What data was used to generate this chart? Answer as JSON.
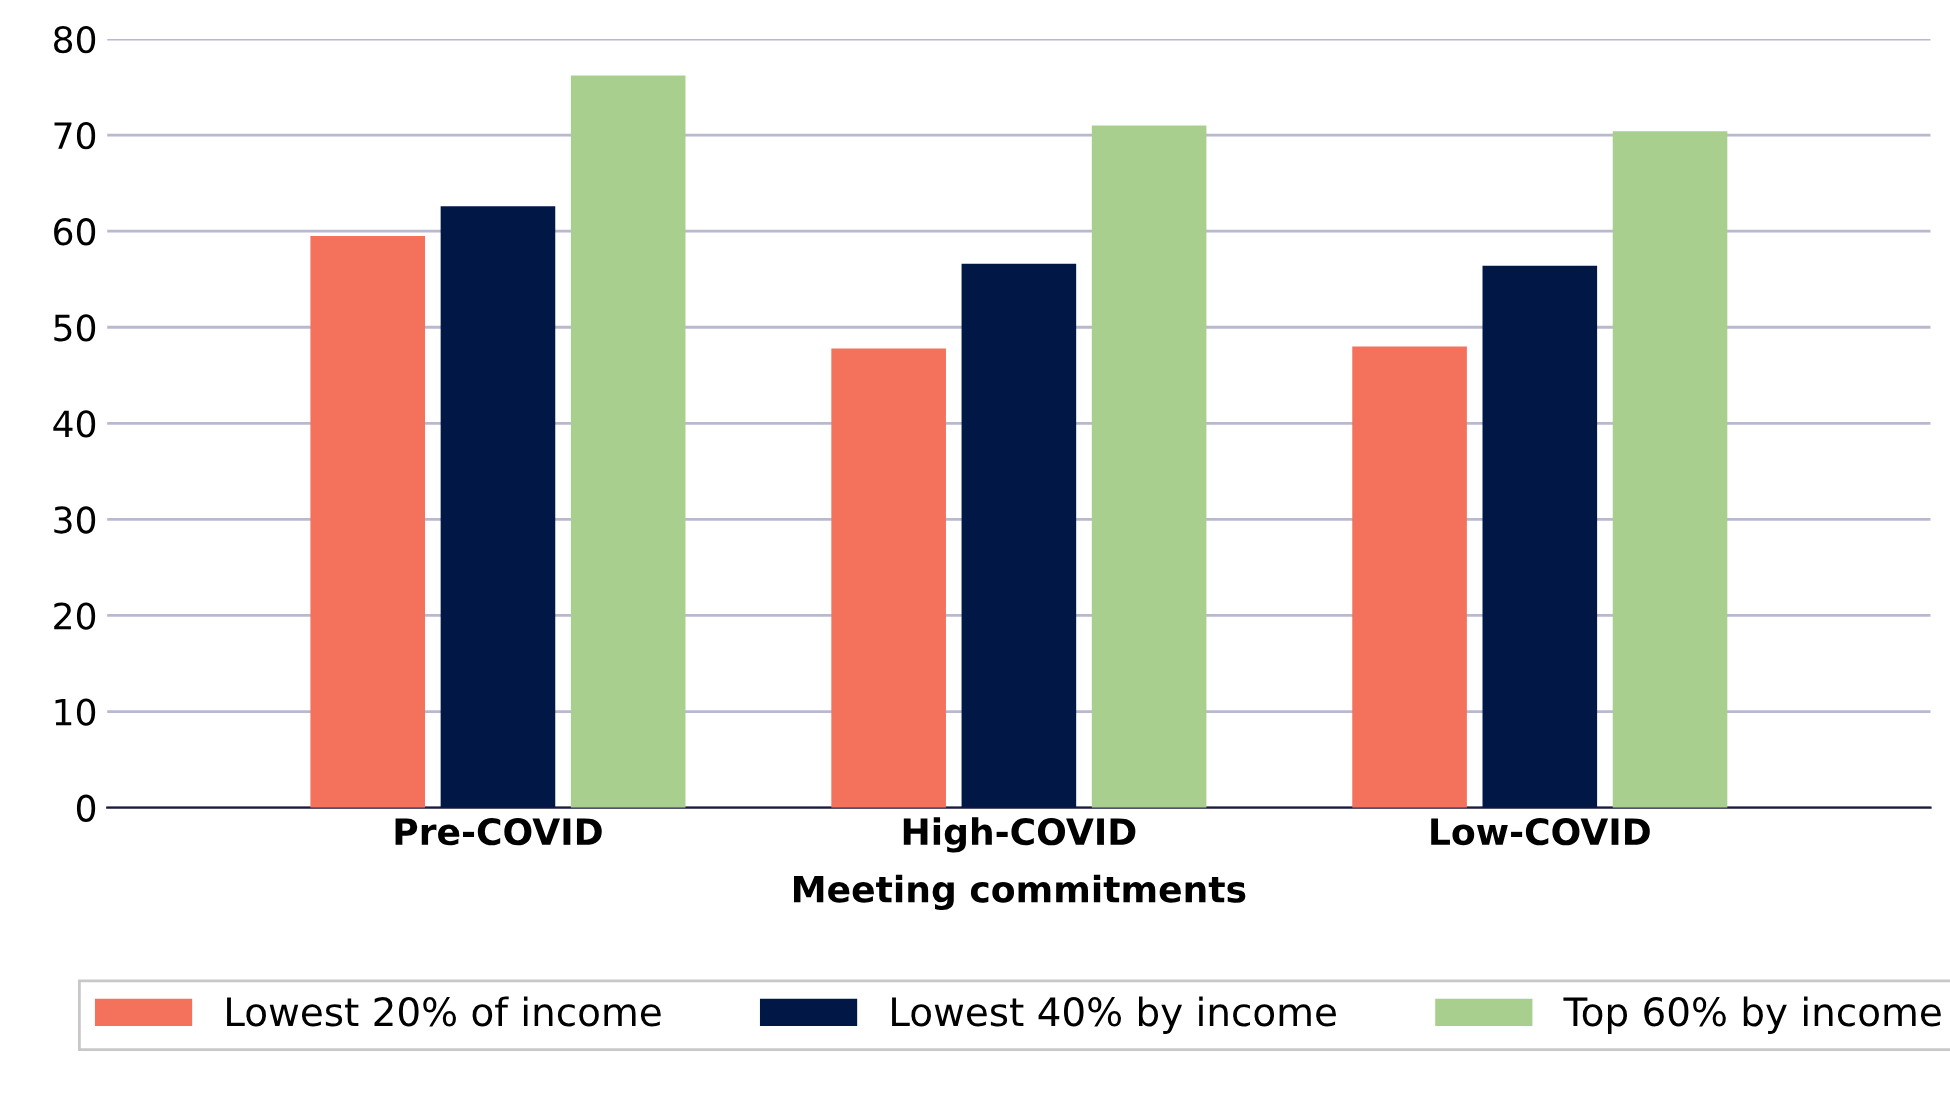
{
  "chart_data": {
    "type": "bar",
    "xlabel": "Meeting commitments",
    "categories": [
      "Pre-COVID",
      "High-COVID",
      "Low-COVID"
    ],
    "series": [
      {
        "name": "Lowest 20% of income",
        "color": "#f4715b",
        "values": [
          59.5,
          47.8,
          48.0
        ]
      },
      {
        "name": "Lowest 40% by income",
        "color": "#011847",
        "values": [
          62.6,
          56.6,
          56.4
        ]
      },
      {
        "name": "Top 60% by income",
        "color": "#a9cf8e",
        "values": [
          76.2,
          71.0,
          70.4
        ]
      }
    ],
    "ylim": [
      0,
      80
    ],
    "yticks": [
      0,
      10,
      20,
      30,
      40,
      50,
      60,
      70,
      80
    ],
    "grid": "y",
    "legend": "bottom"
  }
}
